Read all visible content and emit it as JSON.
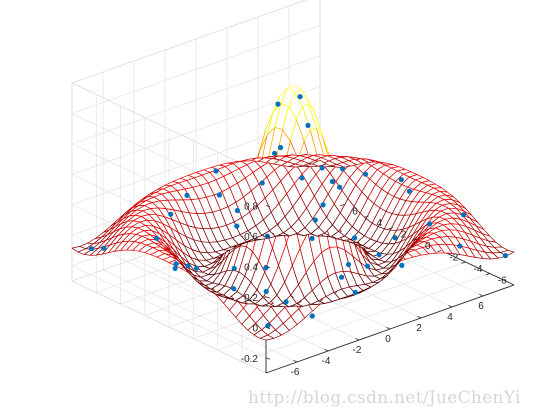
{
  "chart_data": {
    "type": "surface",
    "title": "",
    "xlabel": "",
    "ylabel": "",
    "zlabel": "",
    "xlim": [
      -8,
      8
    ],
    "ylim": [
      -8,
      8
    ],
    "zlim": [
      -0.3,
      1.0
    ],
    "x_ticks": [
      "-6",
      "-4",
      "-2",
      "0",
      "2",
      "4",
      "6"
    ],
    "y_ticks": [
      "-6",
      "-4",
      "-2",
      "0",
      "2",
      "4",
      "6"
    ],
    "z_ticks": [
      "-0.2",
      "0",
      "0.2",
      "0.4",
      "0.6",
      "0.8"
    ],
    "x_tick_values": [
      -6,
      -4,
      -2,
      0,
      2,
      4,
      6
    ],
    "y_tick_values": [
      -6,
      -4,
      -2,
      0,
      2,
      4,
      6
    ],
    "z_tick_values": [
      -0.2,
      0,
      0.2,
      0.4,
      0.6,
      0.8
    ],
    "grid": true,
    "surface": {
      "function": "sin(r)/r, r = sqrt(x^2 + y^2)",
      "x_range": [
        -8,
        8
      ],
      "y_range": [
        -8,
        8
      ],
      "mesh_lines": 33,
      "colormap": "hot (dark red at low values to yellow at the peak)"
    },
    "scatter": {
      "color": "#0072BD",
      "points": [
        [
          0.3,
          -0.2,
          0.92
        ],
        [
          -0.5,
          0.6,
          0.87
        ],
        [
          1.2,
          0.3,
          0.68
        ],
        [
          -1.5,
          -0.4,
          0.62
        ],
        [
          0.6,
          1.8,
          0.5
        ],
        [
          2.3,
          -0.9,
          0.28
        ],
        [
          -2.1,
          1.9,
          0.18
        ],
        [
          -0.8,
          -2.6,
          0.12
        ],
        [
          3.0,
          2.0,
          -0.07
        ],
        [
          -3.4,
          0.5,
          -0.1
        ],
        [
          3.6,
          -2.5,
          -0.15
        ],
        [
          -2.8,
          -3.0,
          -0.21
        ],
        [
          1.4,
          3.9,
          -0.19
        ],
        [
          -4.2,
          2.6,
          -0.15
        ],
        [
          4.6,
          0.8,
          -0.2
        ],
        [
          0.5,
          -4.5,
          -0.21
        ],
        [
          -5.0,
          -1.5,
          -0.1
        ],
        [
          5.2,
          3.4,
          0.05
        ],
        [
          -3.9,
          5.1,
          0.1
        ],
        [
          2.2,
          -5.6,
          0.13
        ],
        [
          6.1,
          -1.8,
          0.15
        ],
        [
          -6.3,
          3.2,
          0.1
        ],
        [
          6.8,
          4.6,
          0.03
        ],
        [
          -5.8,
          -5.2,
          0.05
        ],
        [
          4.9,
          -5.0,
          0.1
        ],
        [
          -1.6,
          6.7,
          0.08
        ],
        [
          7.3,
          0.4,
          0.1
        ],
        [
          -7.4,
          -0.8,
          0.11
        ],
        [
          0.9,
          7.5,
          0.12
        ],
        [
          -2.5,
          -7.2,
          0.1
        ],
        [
          7.8,
          -4.1,
          0.02
        ],
        [
          -7.6,
          5.9,
          -0.02
        ],
        [
          3.8,
          7.4,
          -0.06
        ],
        [
          5.9,
          6.8,
          -0.08
        ],
        [
          -4.7,
          -7.6,
          -0.06
        ],
        [
          7.9,
          7.7,
          -0.12
        ],
        [
          -7.8,
          -7.9,
          0.0
        ],
        [
          7.6,
          -7.8,
          -0.1
        ],
        [
          -6.9,
          7.8,
          -0.12
        ],
        [
          1.0,
          -3.3,
          -0.09
        ],
        [
          -1.2,
          3.1,
          0.0
        ],
        [
          2.8,
          1.1,
          0.07
        ],
        [
          -3.0,
          -1.6,
          -0.03
        ],
        [
          4.2,
          -3.6,
          -0.2
        ],
        [
          -4.4,
          4.1,
          -0.2
        ],
        [
          5.6,
          -6.6,
          -0.01
        ],
        [
          -6.6,
          1.2,
          0.02
        ],
        [
          6.4,
          2.2,
          0.1
        ],
        [
          -0.2,
          -6.4,
          0.06
        ],
        [
          0.1,
          6.2,
          0.04
        ]
      ]
    }
  },
  "watermark": "http://blog.csdn.net/JueChenYi"
}
